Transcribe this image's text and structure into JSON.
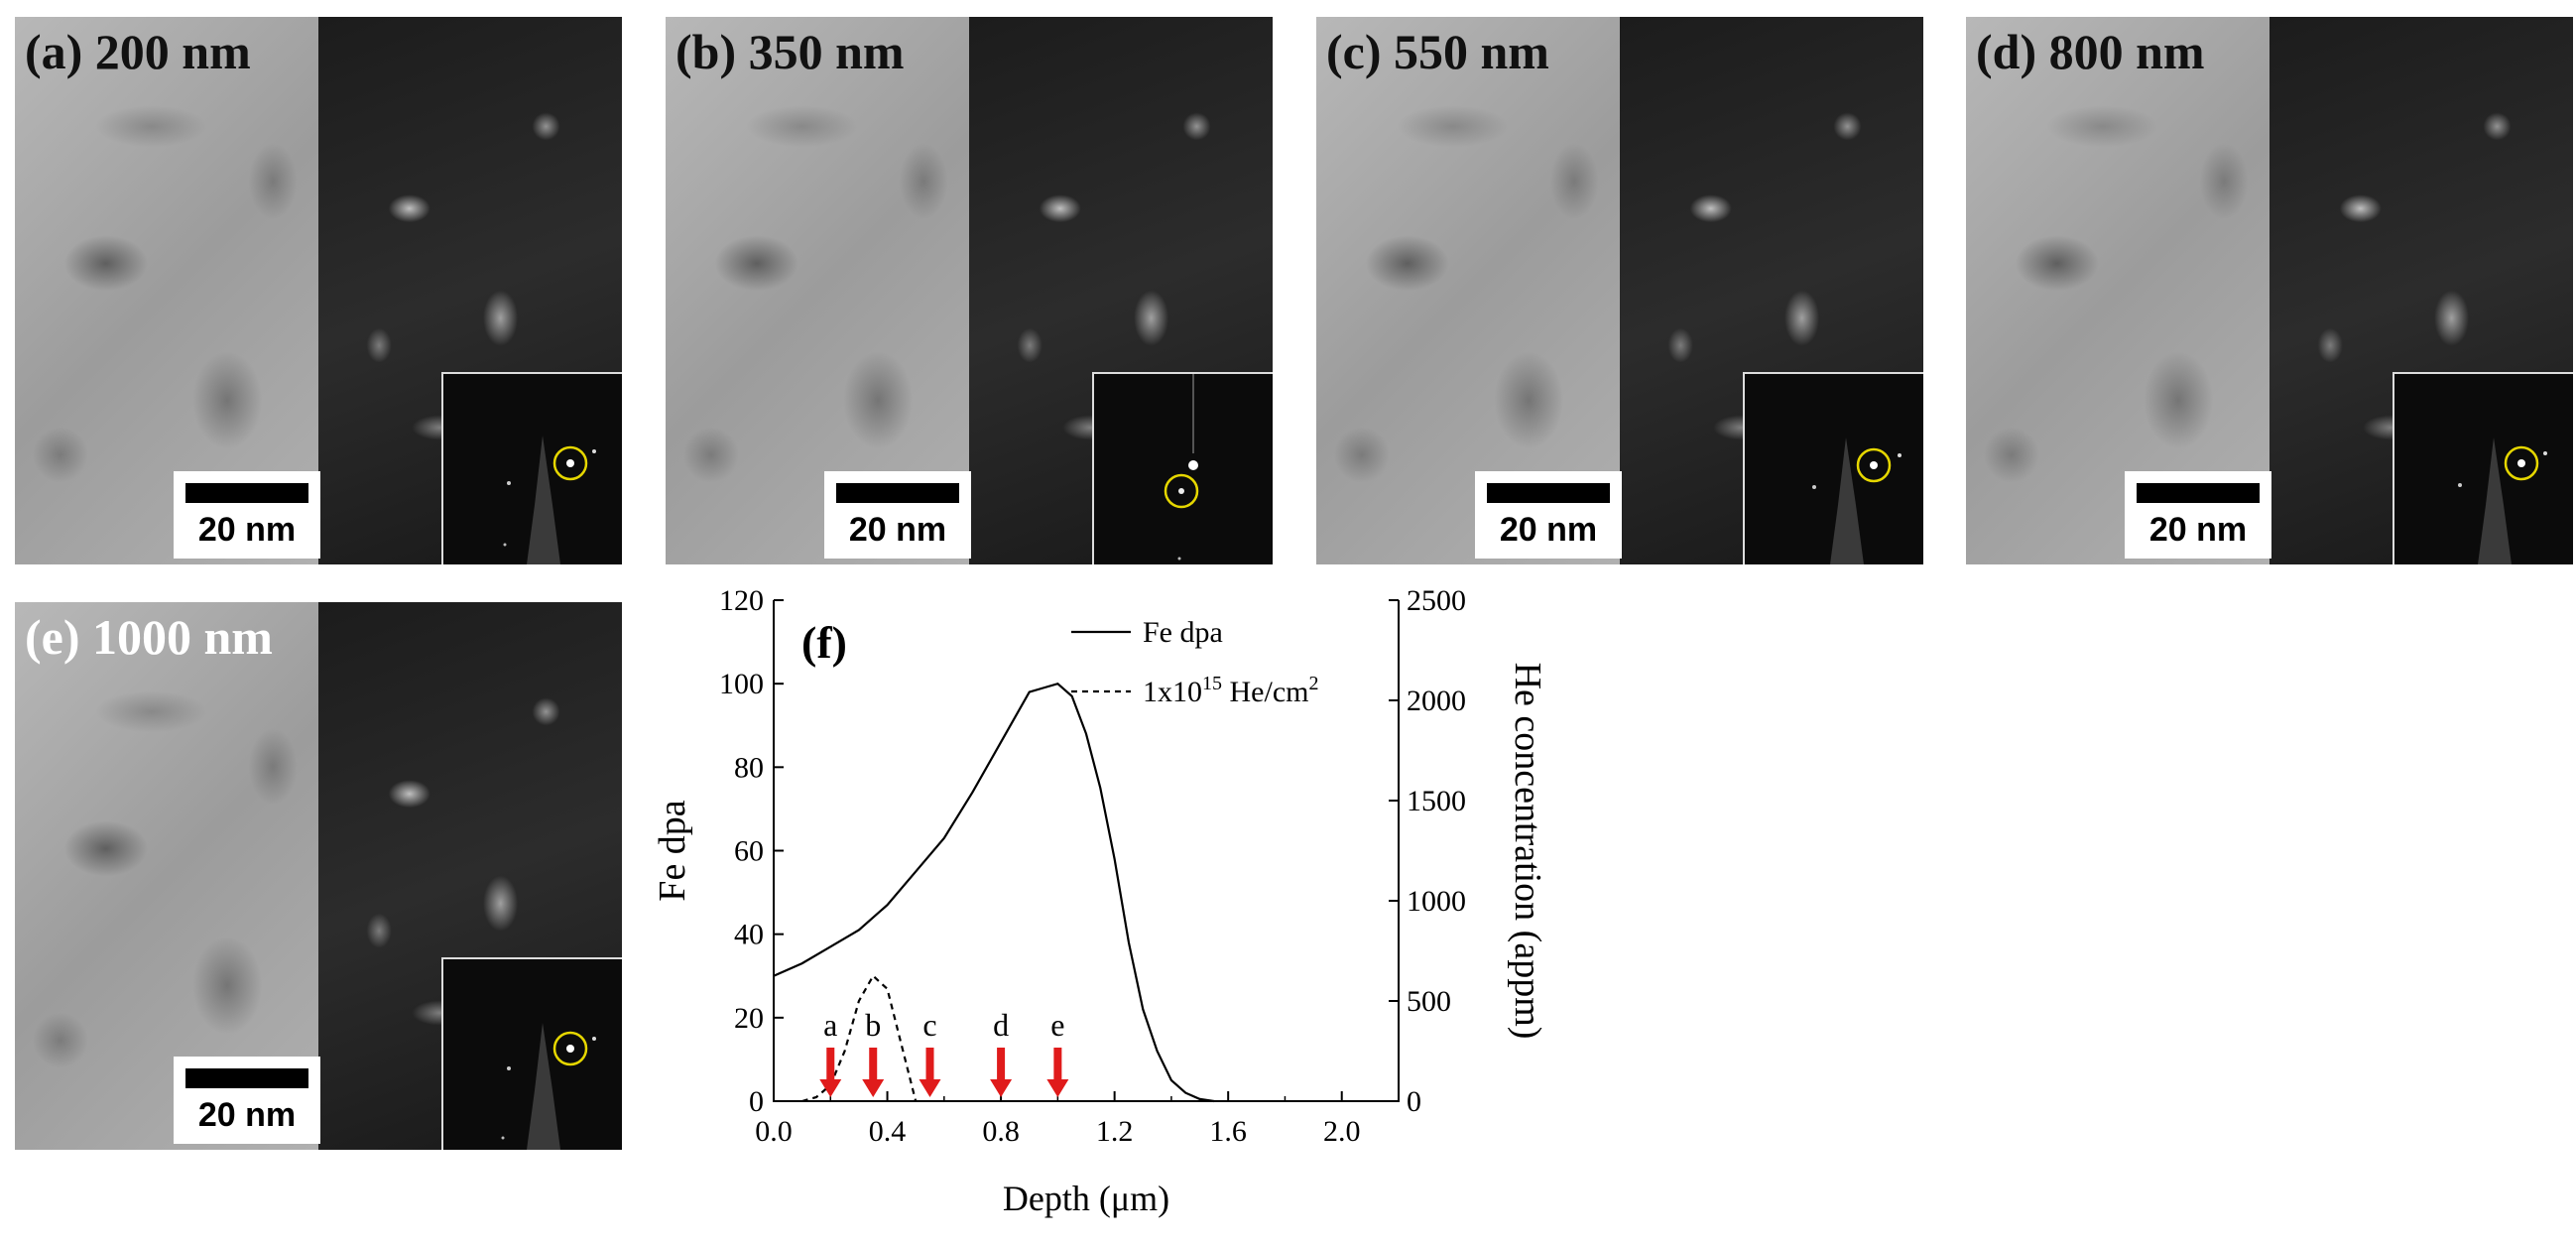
{
  "panels": [
    {
      "label": "(a) 200 nm",
      "scale": "20 nm"
    },
    {
      "label": "(b) 350 nm",
      "scale": "20 nm"
    },
    {
      "label": "(c) 550 nm",
      "scale": "20 nm"
    },
    {
      "label": "(d) 800 nm",
      "scale": "20 nm"
    },
    {
      "label": "(e) 1000 nm",
      "scale": "20 nm"
    }
  ],
  "chart_data": {
    "type": "line",
    "panel_label": "(f)",
    "xlabel": "Depth (μm)",
    "ylabel_left": "Fe dpa",
    "ylabel_right": "He concentration (appm)",
    "xlim": [
      0.0,
      2.2
    ],
    "ylim_left": [
      0,
      120
    ],
    "ylim_right": [
      0,
      2500
    ],
    "x_ticks": [
      "0.0",
      "0.4",
      "0.8",
      "1.2",
      "1.6",
      "2.0"
    ],
    "y_left_ticks": [
      "0",
      "20",
      "40",
      "60",
      "80",
      "100",
      "120"
    ],
    "y_right_ticks": [
      "0",
      "500",
      "1000",
      "1500",
      "2000",
      "2500"
    ],
    "legend": [
      {
        "name": "Fe dpa",
        "style": "solid"
      },
      {
        "name_base": "1x10",
        "name_sup": "15",
        "name_mid": " He/cm",
        "name_sup2": "2",
        "style": "dashed"
      }
    ],
    "series": [
      {
        "name": "Fe dpa",
        "axis": "left",
        "x": [
          0.0,
          0.1,
          0.2,
          0.3,
          0.4,
          0.5,
          0.6,
          0.7,
          0.8,
          0.9,
          0.95,
          1.0,
          1.05,
          1.1,
          1.15,
          1.2,
          1.25,
          1.3,
          1.35,
          1.4,
          1.45,
          1.5,
          1.55
        ],
        "y": [
          30,
          33,
          37,
          41,
          47,
          55,
          63,
          74,
          86,
          98,
          99,
          100,
          97,
          88,
          75,
          58,
          38,
          22,
          12,
          5,
          2,
          0.5,
          0
        ]
      },
      {
        "name": "He concentration",
        "axis": "right",
        "x": [
          0.1,
          0.15,
          0.2,
          0.25,
          0.3,
          0.35,
          0.4,
          0.45,
          0.5
        ],
        "y": [
          0,
          20,
          80,
          250,
          500,
          625,
          560,
          280,
          0
        ]
      }
    ],
    "markers": {
      "labels": [
        "a",
        "b",
        "c",
        "d",
        "e"
      ],
      "x": [
        0.2,
        0.35,
        0.55,
        0.8,
        1.0
      ],
      "color": "#e01b1b"
    }
  }
}
